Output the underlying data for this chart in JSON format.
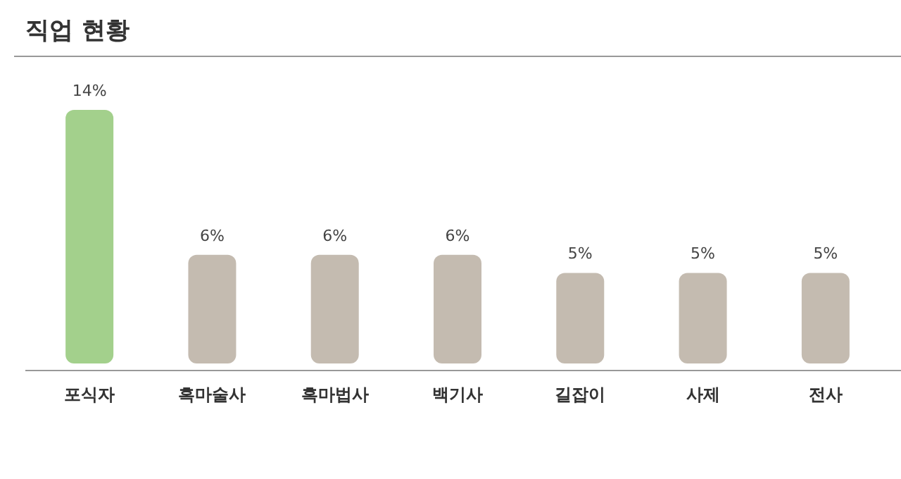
{
  "chart_data": {
    "type": "bar",
    "title": "직업 현황",
    "categories": [
      "포식자",
      "흑마술사",
      "흑마법사",
      "백기사",
      "길잡이",
      "사제",
      "전사"
    ],
    "values": [
      14,
      6,
      6,
      6,
      5,
      5,
      5
    ],
    "colors": [
      "#a3d08c",
      "#c4bbb0",
      "#c4bbb0",
      "#c4bbb0",
      "#c4bbb0",
      "#c4bbb0",
      "#c4bbb0"
    ],
    "value_labels": [
      "14%",
      "6%",
      "6%",
      "6%",
      "5%",
      "5%",
      "5%"
    ]
  }
}
